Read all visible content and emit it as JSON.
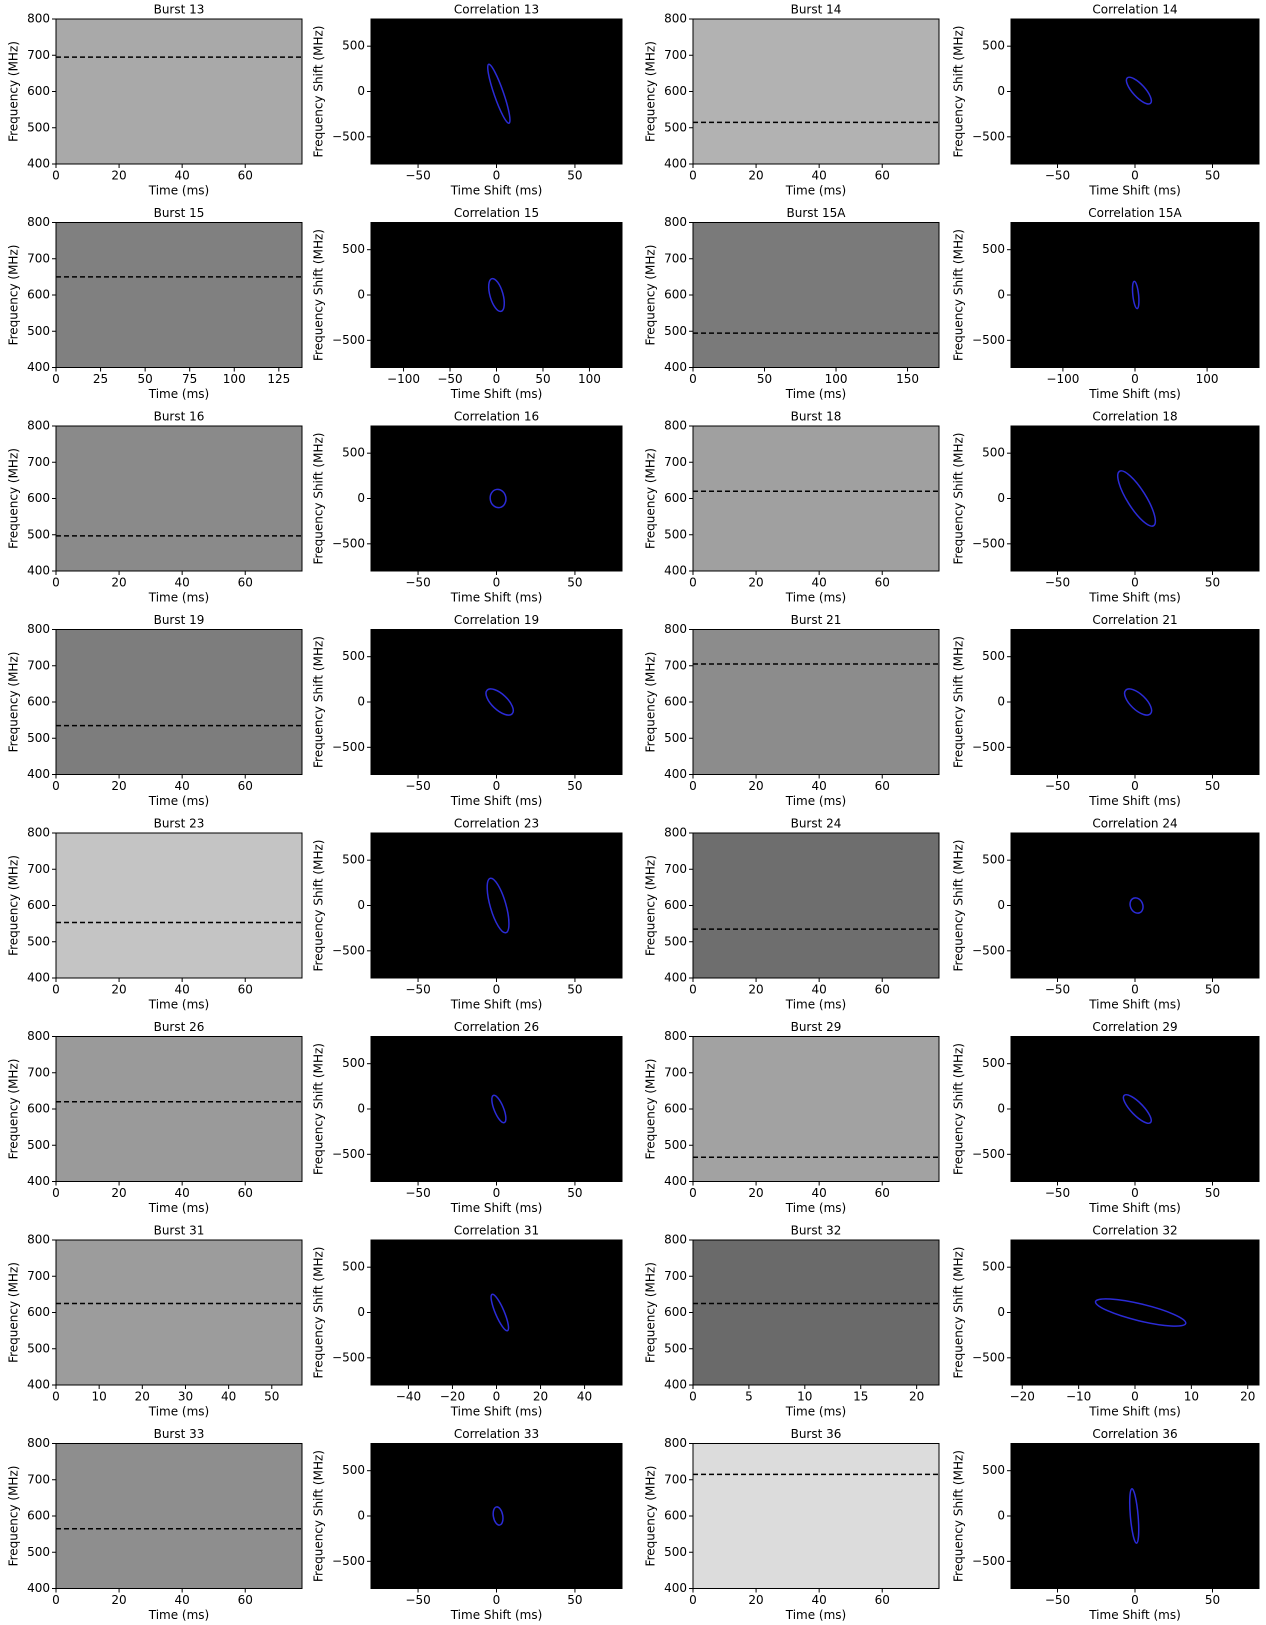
{
  "chart_data": [
    {
      "type": "spectrogram",
      "title": "Burst 13",
      "xlabel": "Time (ms)",
      "ylabel": "Frequency (MHz)",
      "xlim": [
        0,
        78
      ],
      "xticks": [
        0,
        20,
        40,
        60
      ],
      "ylim": [
        400,
        800
      ],
      "yticks": [
        400,
        500,
        600,
        700,
        800
      ],
      "background": "#a9a9a9",
      "hline": 695
    },
    {
      "type": "correlation",
      "title": "Correlation 13",
      "xlabel": "Time Shift (ms)",
      "ylabel": "Frequency Shift (MHz)",
      "xlim": [
        -80,
        80
      ],
      "xticks": [
        {
          "value": -50,
          "label": "−50"
        },
        0,
        50
      ],
      "ylim": [
        -800,
        800
      ],
      "yticks": [
        {
          "value": -500,
          "label": "−500"
        },
        0,
        500
      ],
      "background": "#000000",
      "color": "#2b2bd6",
      "ellipse": {
        "x": [
          -5,
          8
        ],
        "y": [
          300,
          -350
        ],
        "minor": 3
      }
    },
    {
      "type": "spectrogram",
      "title": "Burst 14",
      "xlabel": "Time (ms)",
      "ylabel": "Frequency (MHz)",
      "xlim": [
        0,
        78
      ],
      "xticks": [
        0,
        20,
        40,
        60
      ],
      "ylim": [
        400,
        800
      ],
      "yticks": [
        400,
        500,
        600,
        700,
        800
      ],
      "background": "#b2b2b2",
      "hline": 515
    },
    {
      "type": "correlation",
      "title": "Correlation 14",
      "xlabel": "Time Shift (ms)",
      "ylabel": "Frequency Shift (MHz)",
      "xlim": [
        -80,
        80
      ],
      "xticks": [
        {
          "value": -50,
          "label": "−50"
        },
        0,
        50
      ],
      "ylim": [
        -800,
        800
      ],
      "yticks": [
        {
          "value": -500,
          "label": "−500"
        },
        0,
        500
      ],
      "background": "#000000",
      "color": "#2b2bd6",
      "ellipse": {
        "x": [
          -5,
          10
        ],
        "y": [
          150,
          -130
        ],
        "minor": 4
      }
    },
    {
      "type": "spectrogram",
      "title": "Burst 15",
      "xlabel": "Time (ms)",
      "ylabel": "Frequency (MHz)",
      "xlim": [
        0,
        138
      ],
      "xticks": [
        0,
        25,
        50,
        75,
        100,
        125
      ],
      "ylim": [
        400,
        800
      ],
      "yticks": [
        400,
        500,
        600,
        700,
        800
      ],
      "background": "#808080",
      "hline": 650
    },
    {
      "type": "correlation",
      "title": "Correlation 15",
      "xlabel": "Time Shift (ms)",
      "ylabel": "Frequency Shift (MHz)",
      "xlim": [
        -135,
        135
      ],
      "xticks": [
        {
          "value": -100,
          "label": "−100"
        },
        {
          "value": -50,
          "label": "−50"
        },
        0,
        50,
        100
      ],
      "ylim": [
        -800,
        800
      ],
      "yticks": [
        {
          "value": -500,
          "label": "−500"
        },
        0,
        500
      ],
      "background": "#000000",
      "color": "#2b2bd6",
      "ellipse": {
        "x": [
          -5,
          5
        ],
        "y": [
          180,
          -180
        ],
        "minor": 7
      }
    },
    {
      "type": "spectrogram",
      "title": "Burst 15A",
      "xlabel": "Time (ms)",
      "ylabel": "Frequency (MHz)",
      "xlim": [
        0,
        172
      ],
      "xticks": [
        0,
        50,
        100,
        150
      ],
      "ylim": [
        400,
        800
      ],
      "yticks": [
        400,
        500,
        600,
        700,
        800
      ],
      "background": "#7a7a7a",
      "hline": 495
    },
    {
      "type": "correlation",
      "title": "Correlation 15A",
      "xlabel": "Time Shift (ms)",
      "ylabel": "Frequency Shift (MHz)",
      "xlim": [
        -172,
        172
      ],
      "xticks": [
        {
          "value": -100,
          "label": "−100"
        },
        0,
        100
      ],
      "ylim": [
        -800,
        800
      ],
      "yticks": [
        {
          "value": -500,
          "label": "−500"
        },
        0,
        500
      ],
      "background": "#000000",
      "color": "#2b2bd6",
      "ellipse": {
        "x": [
          -1,
          3
        ],
        "y": [
          150,
          -150
        ],
        "minor": 4
      }
    },
    {
      "type": "spectrogram",
      "title": "Burst 16",
      "xlabel": "Time (ms)",
      "ylabel": "Frequency (MHz)",
      "xlim": [
        0,
        78
      ],
      "xticks": [
        0,
        20,
        40,
        60
      ],
      "ylim": [
        400,
        800
      ],
      "yticks": [
        400,
        500,
        600,
        700,
        800
      ],
      "background": "#8a8a8a",
      "hline": 497
    },
    {
      "type": "correlation",
      "title": "Correlation 16",
      "xlabel": "Time Shift (ms)",
      "ylabel": "Frequency Shift (MHz)",
      "xlim": [
        -80,
        80
      ],
      "xticks": [
        {
          "value": -50,
          "label": "−50"
        },
        0,
        50
      ],
      "ylim": [
        -800,
        800
      ],
      "yticks": [
        {
          "value": -500,
          "label": "−500"
        },
        0,
        500
      ],
      "background": "#000000",
      "color": "#2b2bd6",
      "ellipse": {
        "x": [
          0,
          2
        ],
        "y": [
          100,
          -100
        ],
        "minor": 5
      }
    },
    {
      "type": "spectrogram",
      "title": "Burst 18",
      "xlabel": "Time (ms)",
      "ylabel": "Frequency (MHz)",
      "xlim": [
        0,
        78
      ],
      "xticks": [
        0,
        20,
        40,
        60
      ],
      "ylim": [
        400,
        800
      ],
      "yticks": [
        400,
        500,
        600,
        700,
        800
      ],
      "background": "#a0a0a0",
      "hline": 620
    },
    {
      "type": "correlation",
      "title": "Correlation 18",
      "xlabel": "Time Shift (ms)",
      "ylabel": "Frequency Shift (MHz)",
      "xlim": [
        -80,
        80
      ],
      "xticks": [
        {
          "value": -50,
          "label": "−50"
        },
        0,
        50
      ],
      "ylim": [
        -800,
        800
      ],
      "yticks": [
        {
          "value": -500,
          "label": "−500"
        },
        0,
        500
      ],
      "background": "#000000",
      "color": "#2b2bd6",
      "ellipse": {
        "x": [
          -10,
          12
        ],
        "y": [
          300,
          -300
        ],
        "minor": 6
      }
    },
    {
      "type": "spectrogram",
      "title": "Burst 19",
      "xlabel": "Time (ms)",
      "ylabel": "Frequency (MHz)",
      "xlim": [
        0,
        78
      ],
      "xticks": [
        0,
        20,
        40,
        60
      ],
      "ylim": [
        400,
        800
      ],
      "yticks": [
        400,
        500,
        600,
        700,
        800
      ],
      "background": "#7d7d7d",
      "hline": 535
    },
    {
      "type": "correlation",
      "title": "Correlation 19",
      "xlabel": "Time Shift (ms)",
      "ylabel": "Frequency Shift (MHz)",
      "xlim": [
        -80,
        80
      ],
      "xticks": [
        {
          "value": -50,
          "label": "−50"
        },
        0,
        50
      ],
      "ylim": [
        -800,
        800
      ],
      "yticks": [
        {
          "value": -500,
          "label": "−500"
        },
        0,
        500
      ],
      "background": "#000000",
      "color": "#2b2bd6",
      "ellipse": {
        "x": [
          -6,
          10
        ],
        "y": [
          130,
          -130
        ],
        "minor": 5
      }
    },
    {
      "type": "spectrogram",
      "title": "Burst 21",
      "xlabel": "Time (ms)",
      "ylabel": "Frequency (MHz)",
      "xlim": [
        0,
        78
      ],
      "xticks": [
        0,
        20,
        40,
        60
      ],
      "ylim": [
        400,
        800
      ],
      "yticks": [
        400,
        500,
        600,
        700,
        800
      ],
      "background": "#8c8c8c",
      "hline": 705
    },
    {
      "type": "correlation",
      "title": "Correlation 21",
      "xlabel": "Time Shift (ms)",
      "ylabel": "Frequency Shift (MHz)",
      "xlim": [
        -80,
        80
      ],
      "xticks": [
        {
          "value": -50,
          "label": "−50"
        },
        0,
        50
      ],
      "ylim": [
        -800,
        800
      ],
      "yticks": [
        {
          "value": -500,
          "label": "−500"
        },
        0,
        500
      ],
      "background": "#000000",
      "color": "#2b2bd6",
      "ellipse": {
        "x": [
          -6,
          10
        ],
        "y": [
          130,
          -130
        ],
        "minor": 5
      }
    },
    {
      "type": "spectrogram",
      "title": "Burst 23",
      "xlabel": "Time (ms)",
      "ylabel": "Frequency (MHz)",
      "xlim": [
        0,
        78
      ],
      "xticks": [
        0,
        20,
        40,
        60
      ],
      "ylim": [
        400,
        800
      ],
      "yticks": [
        400,
        500,
        600,
        700,
        800
      ],
      "background": "#c4c4c4",
      "hline": 553
    },
    {
      "type": "correlation",
      "title": "Correlation 23",
      "xlabel": "Time Shift (ms)",
      "ylabel": "Frequency Shift (MHz)",
      "xlim": [
        -80,
        80
      ],
      "xticks": [
        {
          "value": -50,
          "label": "−50"
        },
        0,
        50
      ],
      "ylim": [
        -800,
        800
      ],
      "yticks": [
        {
          "value": -500,
          "label": "−500"
        },
        0,
        500
      ],
      "background": "#000000",
      "color": "#2b2bd6",
      "ellipse": {
        "x": [
          -4,
          6
        ],
        "y": [
          300,
          -300
        ],
        "minor": 5
      }
    },
    {
      "type": "spectrogram",
      "title": "Burst 24",
      "xlabel": "Time (ms)",
      "ylabel": "Frequency (MHz)",
      "xlim": [
        0,
        78
      ],
      "xticks": [
        0,
        20,
        40,
        60
      ],
      "ylim": [
        400,
        800
      ],
      "yticks": [
        400,
        500,
        600,
        700,
        800
      ],
      "background": "#6e6e6e",
      "hline": 535
    },
    {
      "type": "correlation",
      "title": "Correlation 24",
      "xlabel": "Time Shift (ms)",
      "ylabel": "Frequency Shift (MHz)",
      "xlim": [
        -80,
        80
      ],
      "xticks": [
        {
          "value": -50,
          "label": "−50"
        },
        0,
        50
      ],
      "ylim": [
        -800,
        800
      ],
      "yticks": [
        {
          "value": -500,
          "label": "−500"
        },
        0,
        500
      ],
      "background": "#000000",
      "color": "#2b2bd6",
      "ellipse": {
        "x": [
          -1,
          3
        ],
        "y": [
          80,
          -80
        ],
        "minor": 4
      }
    },
    {
      "type": "spectrogram",
      "title": "Burst 26",
      "xlabel": "Time (ms)",
      "ylabel": "Frequency (MHz)",
      "xlim": [
        0,
        78
      ],
      "xticks": [
        0,
        20,
        40,
        60
      ],
      "ylim": [
        400,
        800
      ],
      "yticks": [
        400,
        500,
        600,
        700,
        800
      ],
      "background": "#9a9a9a",
      "hline": 620
    },
    {
      "type": "correlation",
      "title": "Correlation 26",
      "xlabel": "Time Shift (ms)",
      "ylabel": "Frequency Shift (MHz)",
      "xlim": [
        -80,
        80
      ],
      "xticks": [
        {
          "value": -50,
          "label": "−50"
        },
        0,
        50
      ],
      "ylim": [
        -800,
        800
      ],
      "yticks": [
        {
          "value": -500,
          "label": "−500"
        },
        0,
        500
      ],
      "background": "#000000",
      "color": "#2b2bd6",
      "ellipse": {
        "x": [
          -2,
          5
        ],
        "y": [
          150,
          -150
        ],
        "minor": 3
      }
    },
    {
      "type": "spectrogram",
      "title": "Burst 29",
      "xlabel": "Time (ms)",
      "ylabel": "Frequency (MHz)",
      "xlim": [
        0,
        78
      ],
      "xticks": [
        0,
        20,
        40,
        60
      ],
      "ylim": [
        400,
        800
      ],
      "yticks": [
        400,
        500,
        600,
        700,
        800
      ],
      "background": "#a2a2a2",
      "hline": 467
    },
    {
      "type": "correlation",
      "title": "Correlation 29",
      "xlabel": "Time Shift (ms)",
      "ylabel": "Frequency Shift (MHz)",
      "xlim": [
        -80,
        80
      ],
      "xticks": [
        {
          "value": -50,
          "label": "−50"
        },
        0,
        50
      ],
      "ylim": [
        -800,
        800
      ],
      "yticks": [
        {
          "value": -500,
          "label": "−500"
        },
        0,
        500
      ],
      "background": "#000000",
      "color": "#2b2bd6",
      "ellipse": {
        "x": [
          -7,
          10
        ],
        "y": [
          150,
          -150
        ],
        "minor": 4
      }
    },
    {
      "type": "spectrogram",
      "title": "Burst 31",
      "xlabel": "Time (ms)",
      "ylabel": "Frequency (MHz)",
      "xlim": [
        0,
        57
      ],
      "xticks": [
        0,
        10,
        20,
        30,
        40,
        50
      ],
      "ylim": [
        400,
        800
      ],
      "yticks": [
        400,
        500,
        600,
        700,
        800
      ],
      "background": "#9c9c9c",
      "hline": 625
    },
    {
      "type": "correlation",
      "title": "Correlation 31",
      "xlabel": "Time Shift (ms)",
      "ylabel": "Frequency Shift (MHz)",
      "xlim": [
        -57,
        57
      ],
      "xticks": [
        {
          "value": -40,
          "label": "−40"
        },
        {
          "value": -20,
          "label": "−20"
        },
        0,
        20,
        40
      ],
      "ylim": [
        -800,
        800
      ],
      "yticks": [
        {
          "value": -500,
          "label": "−500"
        },
        0,
        500
      ],
      "background": "#000000",
      "color": "#2b2bd6",
      "ellipse": {
        "x": [
          -2,
          5
        ],
        "y": [
          200,
          -200
        ],
        "minor": 2
      }
    },
    {
      "type": "spectrogram",
      "title": "Burst 32",
      "xlabel": "Time (ms)",
      "ylabel": "Frequency (MHz)",
      "xlim": [
        0,
        22
      ],
      "xticks": [
        0,
        5,
        10,
        15,
        20
      ],
      "ylim": [
        400,
        800
      ],
      "yticks": [
        400,
        500,
        600,
        700,
        800
      ],
      "background": "#6a6a6a",
      "hline": 625
    },
    {
      "type": "correlation",
      "title": "Correlation 32",
      "xlabel": "Time Shift (ms)",
      "ylabel": "Frequency Shift (MHz)",
      "xlim": [
        -22,
        22
      ],
      "xticks": [
        {
          "value": -20,
          "label": "−20"
        },
        {
          "value": -10,
          "label": "−10"
        },
        0,
        10,
        20
      ],
      "ylim": [
        -800,
        800
      ],
      "yticks": [
        {
          "value": -500,
          "label": "−500"
        },
        0,
        500
      ],
      "background": "#000000",
      "color": "#2b2bd6",
      "ellipse": {
        "x": [
          -7,
          9
        ],
        "y": [
          120,
          -120
        ],
        "minor": 1.5
      }
    },
    {
      "type": "spectrogram",
      "title": "Burst 33",
      "xlabel": "Time (ms)",
      "ylabel": "Frequency (MHz)",
      "xlim": [
        0,
        78
      ],
      "xticks": [
        0,
        20,
        40,
        60
      ],
      "ylim": [
        400,
        800
      ],
      "yticks": [
        400,
        500,
        600,
        700,
        800
      ],
      "background": "#8e8e8e",
      "hline": 565
    },
    {
      "type": "correlation",
      "title": "Correlation 33",
      "xlabel": "Time Shift (ms)",
      "ylabel": "Frequency Shift (MHz)",
      "xlim": [
        -80,
        80
      ],
      "xticks": [
        {
          "value": -50,
          "label": "−50"
        },
        0,
        50
      ],
      "ylim": [
        -800,
        800
      ],
      "yticks": [
        {
          "value": -500,
          "label": "−500"
        },
        0,
        500
      ],
      "background": "#000000",
      "color": "#2b2bd6",
      "ellipse": {
        "x": [
          0,
          2
        ],
        "y": [
          100,
          -100
        ],
        "minor": 3
      }
    },
    {
      "type": "spectrogram",
      "title": "Burst 36",
      "xlabel": "Time (ms)",
      "ylabel": "Frequency (MHz)",
      "xlim": [
        0,
        78
      ],
      "xticks": [
        0,
        20,
        40,
        60
      ],
      "ylim": [
        400,
        800
      ],
      "yticks": [
        400,
        500,
        600,
        700,
        800
      ],
      "background": "#dcdcdc",
      "hline": 715
    },
    {
      "type": "correlation",
      "title": "Correlation 36",
      "xlabel": "Time Shift (ms)",
      "ylabel": "Frequency Shift (MHz)",
      "xlim": [
        -80,
        80
      ],
      "xticks": [
        {
          "value": -50,
          "label": "−50"
        },
        0,
        50
      ],
      "ylim": [
        -800,
        800
      ],
      "yticks": [
        {
          "value": -500,
          "label": "−500"
        },
        0,
        500
      ],
      "background": "#000000",
      "color": "#2b2bd6",
      "ellipse": {
        "x": [
          -2,
          1
        ],
        "y": [
          300,
          -300
        ],
        "minor": 2.5
      }
    }
  ]
}
